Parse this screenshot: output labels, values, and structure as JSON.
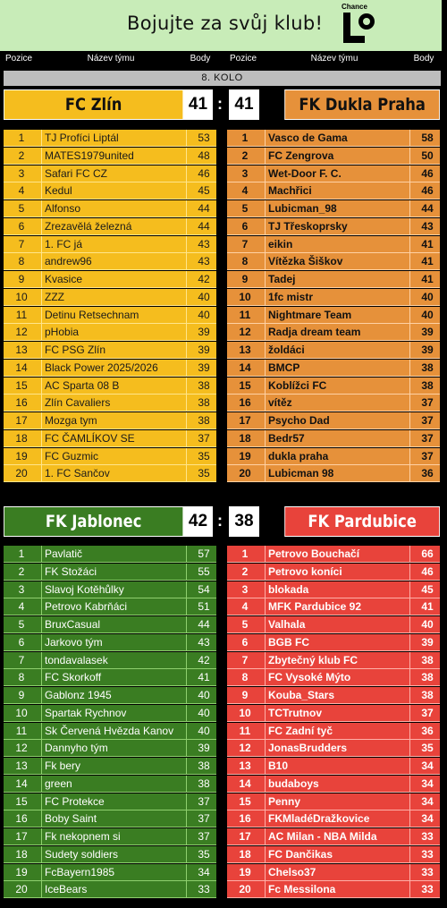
{
  "banner": {
    "title": "Bojujte za svůj klub!",
    "logo_text": "Chance",
    "logo_icon": "chance-logo-icon"
  },
  "columns": {
    "left": [
      "Pozice",
      "Název týmu",
      "Body"
    ],
    "right": [
      "Pozice",
      "Název týmu",
      "Body"
    ]
  },
  "round_label": "8. KOLO",
  "colors": {
    "zlin": "#f5bd1e",
    "dukla": "#e6913a",
    "jablonec": "#3a7d22",
    "pardubice": "#e8433b"
  },
  "match1": {
    "home": {
      "name": "FC Zlín",
      "score": "41"
    },
    "away": {
      "name": "FK Dukla Praha",
      "score": "41"
    },
    "home_rows": [
      [
        "1",
        "TJ Profíci Liptál",
        "53"
      ],
      [
        "2",
        "MATES1979united",
        "48"
      ],
      [
        "3",
        "Safari FC CZ",
        "46"
      ],
      [
        "4",
        "Kedul",
        "45"
      ],
      [
        "5",
        "Alfonso",
        "44"
      ],
      [
        "6",
        "Zrezavělá železná",
        "44"
      ],
      [
        "7",
        "1. FC já",
        "43"
      ],
      [
        "8",
        "andrew96",
        "43"
      ],
      [
        "9",
        "Kvasice",
        "42"
      ],
      [
        "10",
        "ZZZ",
        "40"
      ],
      [
        "11",
        "Detinu Retsechnam",
        "40"
      ],
      [
        "12",
        "pHobia",
        "39"
      ],
      [
        "13",
        "FC PSG Zlín",
        "39"
      ],
      [
        "14",
        "Black Power 2025/2026",
        "39"
      ],
      [
        "15",
        "AC Sparta 08 B",
        "38"
      ],
      [
        "16",
        "Zlín Cavaliers",
        "38"
      ],
      [
        "17",
        "Mozga tym",
        "38"
      ],
      [
        "18",
        "FC ČAMLÍKOV SE",
        "37"
      ],
      [
        "19",
        "FC Guzmic",
        "35"
      ],
      [
        "20",
        "1. FC Sančov",
        "35"
      ]
    ],
    "away_rows": [
      [
        "1",
        "Vasco de Gama",
        "58"
      ],
      [
        "2",
        "FC Zengrova",
        "50"
      ],
      [
        "3",
        "Wet-Door F. C.",
        "46"
      ],
      [
        "4",
        "Machřici",
        "46"
      ],
      [
        "5",
        "Lubicman_98",
        "44"
      ],
      [
        "6",
        "TJ Třeskoprsky",
        "43"
      ],
      [
        "7",
        "eikin",
        "41"
      ],
      [
        "8",
        "Vítězka Šiškov",
        "41"
      ],
      [
        "9",
        "Tadej",
        "41"
      ],
      [
        "10",
        "1fc mistr",
        "40"
      ],
      [
        "11",
        "Nightmare Team",
        "40"
      ],
      [
        "12",
        "Radja dream team",
        "39"
      ],
      [
        "13",
        "žoldáci",
        "39"
      ],
      [
        "14",
        "BMCP",
        "38"
      ],
      [
        "15",
        "Koblížci FC",
        "38"
      ],
      [
        "16",
        "vítěz",
        "37"
      ],
      [
        "17",
        "Psycho Dad",
        "37"
      ],
      [
        "18",
        "Bedr57",
        "37"
      ],
      [
        "19",
        "dukla praha",
        "37"
      ],
      [
        "20",
        "Lubicman 98",
        "36"
      ]
    ]
  },
  "match2": {
    "home": {
      "name": "FK Jablonec",
      "score": "42"
    },
    "away": {
      "name": "FK Pardubice",
      "score": "38"
    },
    "home_rows": [
      [
        "1",
        "Pavlatič",
        "57"
      ],
      [
        "2",
        "FK Stožáci",
        "55"
      ],
      [
        "3",
        "Slavoj Kotěhůlky",
        "54"
      ],
      [
        "4",
        "Petrovo Kabrňáci",
        "51"
      ],
      [
        "5",
        "BruxCasual",
        "44"
      ],
      [
        "6",
        "Jarkovo tým",
        "43"
      ],
      [
        "7",
        "tondavalasek",
        "42"
      ],
      [
        "8",
        "FC Skorkoff",
        "41"
      ],
      [
        "9",
        "Gablonz 1945",
        "40"
      ],
      [
        "10",
        "Spartak Rychnov",
        "40"
      ],
      [
        "11",
        "Sk Červená Hvězda Kanov",
        "40"
      ],
      [
        "12",
        "Dannyho tým",
        "39"
      ],
      [
        "13",
        "Fk bery",
        "38"
      ],
      [
        "14",
        "green",
        "38"
      ],
      [
        "15",
        "FC Protekce",
        "37"
      ],
      [
        "16",
        "Boby Saint",
        "37"
      ],
      [
        "17",
        "Fk nekopnem si",
        "37"
      ],
      [
        "18",
        "Sudety soldiers",
        "35"
      ],
      [
        "19",
        "FcBayern1985",
        "34"
      ],
      [
        "20",
        "IceBears",
        "33"
      ]
    ],
    "away_rows": [
      [
        "1",
        "Petrovo Bouchačí",
        "66"
      ],
      [
        "2",
        "Petrovo koníci",
        "46"
      ],
      [
        "3",
        "blokada",
        "45"
      ],
      [
        "4",
        "MFK Pardubice 92",
        "41"
      ],
      [
        "5",
        "Valhala",
        "40"
      ],
      [
        "6",
        "BGB FC",
        "39"
      ],
      [
        "7",
        "Zbytečný klub FC",
        "38"
      ],
      [
        "8",
        "FC Vysoké Mýto",
        "38"
      ],
      [
        "9",
        "Kouba_Stars",
        "38"
      ],
      [
        "10",
        "TCTrutnov",
        "37"
      ],
      [
        "11",
        "FC Zadní tyč",
        "36"
      ],
      [
        "12",
        "JonasBrudders",
        "35"
      ],
      [
        "13",
        "B10",
        "34"
      ],
      [
        "14",
        "budaboys",
        "34"
      ],
      [
        "15",
        "Penny",
        "34"
      ],
      [
        "16",
        "FKMladéDražkovice",
        "34"
      ],
      [
        "17",
        "AC Milan - NBA Milda",
        "33"
      ],
      [
        "18",
        "FC Dančikas",
        "33"
      ],
      [
        "19",
        "Chelso37",
        "33"
      ],
      [
        "20",
        "Fc Messilona",
        "33"
      ]
    ]
  }
}
